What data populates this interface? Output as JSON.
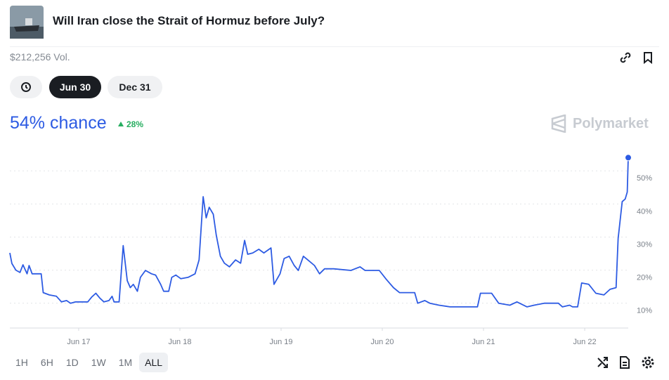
{
  "header": {
    "title": "Will Iran close the Strait of Hormuz before July?",
    "volume": "$212,256 Vol."
  },
  "date_tabs": [
    "Jun 30",
    "Dec 31"
  ],
  "chance": "54% chance",
  "change": "28%",
  "brand": "Polymarket",
  "chart_data": {
    "type": "line",
    "x": [
      16.32,
      16.34,
      16.38,
      16.42,
      16.45,
      16.49,
      16.51,
      16.54,
      16.63,
      16.65,
      16.71,
      16.78,
      16.83,
      16.88,
      16.92,
      16.97,
      17.09,
      17.13,
      17.17,
      17.21,
      17.25,
      17.3,
      17.33,
      17.35,
      17.4,
      17.44,
      17.48,
      17.51,
      17.54,
      17.58,
      17.61,
      17.66,
      17.72,
      17.76,
      17.81,
      17.84,
      17.89,
      17.92,
      17.96,
      18.01,
      18.08,
      18.15,
      18.19,
      18.23,
      18.26,
      18.29,
      18.33,
      18.36,
      18.4,
      18.44,
      18.49,
      18.55,
      18.6,
      18.64,
      18.67,
      18.72,
      18.78,
      18.83,
      18.9,
      18.93,
      18.99,
      19.03,
      19.08,
      19.13,
      19.17,
      19.22,
      19.28,
      19.33,
      19.38,
      19.43,
      19.52,
      19.69,
      19.78,
      19.83,
      19.97,
      20.04,
      20.11,
      20.17,
      20.32,
      20.35,
      20.42,
      20.47,
      20.56,
      20.67,
      20.94,
      20.97,
      21.08,
      21.15,
      21.26,
      21.33,
      21.43,
      21.5,
      21.6,
      21.74,
      21.78,
      21.85,
      21.88,
      21.93,
      21.97,
      22.04,
      22.11,
      22.19,
      22.25,
      22.31,
      22.33,
      22.37,
      22.4,
      22.42,
      22.43
    ],
    "values": [
      25.2,
      22,
      20,
      19.3,
      21.6,
      18.9,
      21.4,
      18.9,
      18.9,
      13.2,
      12.5,
      12.1,
      10.4,
      10.8,
      10,
      10.4,
      10.4,
      11.9,
      13,
      11.5,
      10.4,
      10.8,
      12.1,
      10.4,
      10.4,
      27.4,
      16.8,
      14.7,
      15.7,
      13.6,
      17.8,
      19.9,
      18.9,
      18.5,
      15.7,
      13.6,
      13.6,
      17.8,
      18.5,
      17.4,
      17.8,
      18.9,
      23.1,
      42.2,
      35.8,
      39,
      36.9,
      30.5,
      24.2,
      22.1,
      21,
      23.1,
      22.1,
      29,
      24.8,
      25.2,
      26.3,
      25.2,
      26.7,
      15.7,
      18.9,
      23.5,
      24.2,
      21.4,
      19.9,
      24.2,
      22.7,
      21.4,
      18.9,
      20.4,
      20.4,
      19.9,
      21,
      19.9,
      19.9,
      17.2,
      14.7,
      13.2,
      13.2,
      10,
      10.8,
      10,
      9.4,
      8.9,
      8.9,
      13,
      13,
      10,
      9.4,
      10.4,
      8.9,
      9.4,
      10,
      10,
      8.9,
      9.4,
      8.9,
      8.9,
      16.1,
      15.7,
      13,
      12.5,
      14.2,
      14.7,
      29.5,
      40.7,
      41.5,
      43.6,
      54
    ],
    "color": "#2d5be3",
    "xlim": [
      16.32,
      22.43
    ],
    "ylim": [
      2.5,
      56
    ],
    "xticks": [
      {
        "value": 17,
        "label": "Jun 17"
      },
      {
        "value": 18,
        "label": "Jun 18"
      },
      {
        "value": 19,
        "label": "Jun 19"
      },
      {
        "value": 20,
        "label": "Jun 20"
      },
      {
        "value": 21,
        "label": "Jun 21"
      },
      {
        "value": 22,
        "label": "Jun 22"
      }
    ],
    "yticks": [
      {
        "value": 10,
        "label": "10%"
      },
      {
        "value": 20,
        "label": "20%"
      },
      {
        "value": 30,
        "label": "30%"
      },
      {
        "value": 40,
        "label": "40%"
      },
      {
        "value": 50,
        "label": "50%"
      }
    ],
    "grid": true
  },
  "ranges": [
    "1H",
    "6H",
    "1D",
    "1W",
    "1M",
    "ALL"
  ]
}
